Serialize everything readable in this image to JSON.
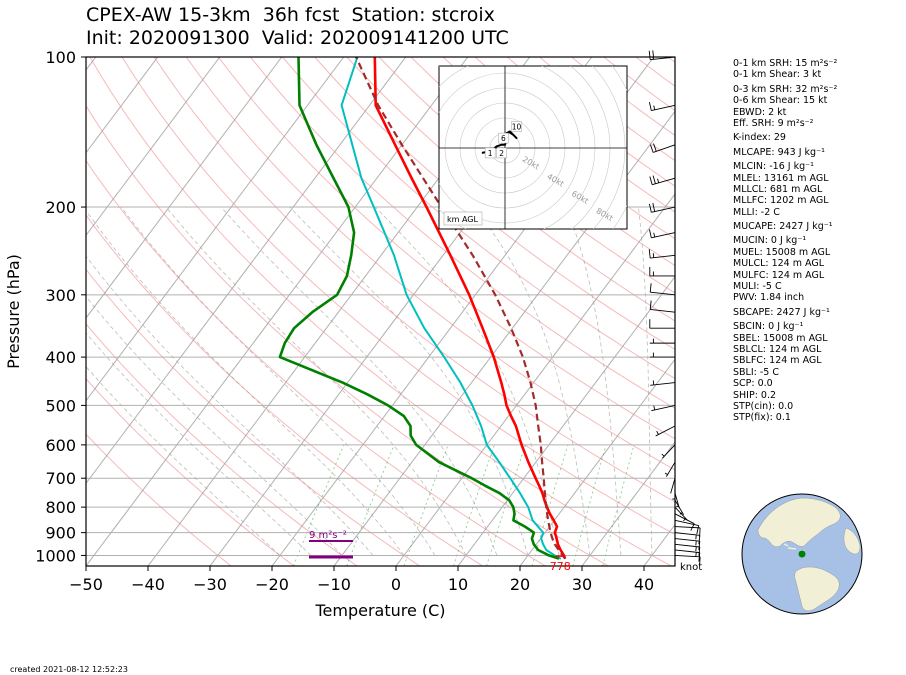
{
  "title_line1": "CPEX-AW 15-3km  36h fcst  Station: stcroix",
  "title_line2": "Init: 2020091300  Valid: 202009141200 UTC",
  "created": "created 2021-08-12 12:52:23",
  "indices": [
    {
      "text": "0-1 km SRH: 15 m²s⁻²"
    },
    {
      "text": "0-1 km Shear: 3 kt"
    },
    {
      "text": "0-3 km SRH: 32 m²s⁻²"
    },
    {
      "text": "0-6 km Shear: 15 kt"
    },
    {
      "text": "EBWD: 2 kt"
    },
    {
      "text": "Eff. SRH: 9 m²s⁻²"
    },
    {
      "text": "K-index: 29"
    },
    {
      "text": "MLCAPE: 943 J kg⁻¹"
    },
    {
      "text": "MLCIN: -16 J kg⁻¹"
    },
    {
      "text": "MLEL: 13161 m AGL"
    },
    {
      "text": "MLLCL: 681 m AGL"
    },
    {
      "text": "MLLFC: 1202 m AGL"
    },
    {
      "text": "MLLI: -2 C"
    },
    {
      "text": "MUCAPE: 2427 J kg⁻¹"
    },
    {
      "text": "MUCIN: 0 J kg⁻¹"
    },
    {
      "text": "MUEL: 15008 m AGL"
    },
    {
      "text": "MULCL: 124 m AGL"
    },
    {
      "text": "MULFC: 124 m AGL"
    },
    {
      "text": "MULI: -5 C"
    },
    {
      "text": "PWV: 1.84 inch"
    },
    {
      "text": "SBCAPE: 2427 J kg⁻¹"
    },
    {
      "text": "SBCIN: 0 J kg⁻¹"
    },
    {
      "text": "SBEL: 15008 m AGL"
    },
    {
      "text": "SBLCL: 124 m AGL"
    },
    {
      "text": "SBLFC: 124 m AGL"
    },
    {
      "text": "SBLI: -5 C"
    },
    {
      "text": "SCP: 0.0"
    },
    {
      "text": "SHIP: 0.2"
    },
    {
      "text": "STP(cin): 0.0"
    },
    {
      "text": "STP(fix): 0.1"
    }
  ],
  "chart_data": {
    "type": "line",
    "subtype": "skew-T log-P",
    "xlabel": "Temperature (C)",
    "ylabel": "Pressure (hPa)",
    "xlim": [
      -50,
      45
    ],
    "ylim": [
      1050,
      100
    ],
    "log_y": true,
    "x_ticks": [
      -50,
      -40,
      -30,
      -20,
      -10,
      0,
      10,
      20,
      30,
      40
    ],
    "y_ticks": [
      100,
      200,
      300,
      400,
      500,
      600,
      700,
      800,
      900,
      1000
    ],
    "colors": {
      "temperature": "#ff0000",
      "dewpoint": "#008000",
      "wetbulb": "#00bfbf",
      "parcel": "#a52a2a",
      "srh": "#800080",
      "lcl": "#ff0000"
    },
    "series": [
      {
        "role": "temperature",
        "points": [
          [
            1015,
            26.4
          ],
          [
            1000,
            25.8
          ],
          [
            975,
            24.6
          ],
          [
            950,
            23.5
          ],
          [
            925,
            22.6
          ],
          [
            900,
            21.6
          ],
          [
            875,
            21.2
          ],
          [
            850,
            19.9
          ],
          [
            825,
            18.5
          ],
          [
            800,
            17.2
          ],
          [
            775,
            16.0
          ],
          [
            750,
            14.8
          ],
          [
            725,
            13.4
          ],
          [
            700,
            11.9
          ],
          [
            650,
            8.8
          ],
          [
            600,
            5.6
          ],
          [
            550,
            2.4
          ],
          [
            525,
            0.4
          ],
          [
            500,
            -1.6
          ],
          [
            475,
            -3.3
          ],
          [
            450,
            -5.2
          ],
          [
            400,
            -9.5
          ],
          [
            350,
            -14.8
          ],
          [
            300,
            -21.0
          ],
          [
            250,
            -28.8
          ],
          [
            200,
            -38.5
          ],
          [
            175,
            -44.4
          ],
          [
            150,
            -51.1
          ],
          [
            125,
            -59.0
          ],
          [
            100,
            -65.0
          ]
        ]
      },
      {
        "role": "dewpoint",
        "points": [
          [
            1015,
            25.4
          ],
          [
            1000,
            23.4
          ],
          [
            975,
            21.0
          ],
          [
            950,
            19.6
          ],
          [
            925,
            18.6
          ],
          [
            900,
            18.2
          ],
          [
            875,
            16.0
          ],
          [
            850,
            13.4
          ],
          [
            825,
            12.8
          ],
          [
            800,
            11.8
          ],
          [
            775,
            10.3
          ],
          [
            750,
            7.9
          ],
          [
            725,
            4.7
          ],
          [
            700,
            1.6
          ],
          [
            650,
            -5.6
          ],
          [
            600,
            -11.4
          ],
          [
            575,
            -13.4
          ],
          [
            550,
            -14.6
          ],
          [
            525,
            -16.9
          ],
          [
            500,
            -20.7
          ],
          [
            475,
            -25.4
          ],
          [
            450,
            -30.8
          ],
          [
            400,
            -44.0
          ],
          [
            375,
            -44.9
          ],
          [
            350,
            -45.2
          ],
          [
            325,
            -44.2
          ],
          [
            300,
            -42.3
          ],
          [
            275,
            -43.0
          ],
          [
            250,
            -44.8
          ],
          [
            225,
            -47.1
          ],
          [
            200,
            -51.1
          ],
          [
            175,
            -57.0
          ],
          [
            150,
            -63.8
          ],
          [
            125,
            -71.3
          ],
          [
            100,
            -77.3
          ]
        ]
      },
      {
        "role": "wetbulb",
        "points": [
          [
            1015,
            25.7
          ],
          [
            1000,
            24.3
          ],
          [
            975,
            22.3
          ],
          [
            950,
            21.1
          ],
          [
            925,
            20.1
          ],
          [
            900,
            19.7
          ],
          [
            850,
            16.5
          ],
          [
            800,
            14.2
          ],
          [
            750,
            11.2
          ],
          [
            700,
            7.8
          ],
          [
            650,
            4.1
          ],
          [
            600,
            0.0
          ],
          [
            550,
            -3.2
          ],
          [
            500,
            -7.1
          ],
          [
            450,
            -11.8
          ],
          [
            400,
            -17.5
          ],
          [
            350,
            -24.2
          ],
          [
            300,
            -31.1
          ],
          [
            250,
            -37.9
          ],
          [
            200,
            -47.0
          ],
          [
            175,
            -52.5
          ],
          [
            150,
            -58.0
          ],
          [
            125,
            -64.5
          ],
          [
            100,
            -67.8
          ]
        ]
      },
      {
        "role": "parcel",
        "points": [
          [
            1015,
            26.4
          ],
          [
            1000,
            25.6
          ],
          [
            975,
            24.3
          ],
          [
            950,
            23.0
          ],
          [
            925,
            21.9
          ],
          [
            900,
            20.9
          ],
          [
            850,
            19.0
          ],
          [
            800,
            17.1
          ],
          [
            750,
            15.2
          ],
          [
            700,
            13.2
          ],
          [
            650,
            11.0
          ],
          [
            600,
            8.7
          ],
          [
            550,
            6.0
          ],
          [
            500,
            3.1
          ],
          [
            450,
            -0.5
          ],
          [
            400,
            -4.8
          ],
          [
            350,
            -10.2
          ],
          [
            300,
            -16.8
          ],
          [
            250,
            -25.2
          ],
          [
            200,
            -36.1
          ],
          [
            150,
            -50.0
          ],
          [
            125,
            -58.6
          ],
          [
            100,
            -68.0
          ]
        ]
      }
    ],
    "lcl": {
      "pressure": 1003,
      "temperature": 25.3,
      "label": "778"
    },
    "srh_marker": {
      "label": "9 m²s⁻²"
    },
    "wind_unit_label": "knot",
    "hodograph": {
      "legend": "km AGL",
      "ring_labels": [
        "20kt",
        "40kt",
        "60kt",
        "80kt"
      ],
      "height_labels": [
        "10",
        "6",
        "1",
        "2"
      ],
      "trace_kt": [
        [
          -14,
          -3
        ],
        [
          -9,
          -2
        ],
        [
          -5,
          1
        ],
        [
          -2,
          2
        ],
        [
          0,
          2
        ],
        [
          1,
          5
        ],
        [
          1,
          9
        ],
        [
          3,
          10
        ],
        [
          7,
          6
        ],
        [
          5,
          8
        ],
        [
          2,
          10
        ]
      ]
    },
    "wind_barbs": [
      {
        "p": 1000,
        "speed_kt": 12,
        "dir": 95
      },
      {
        "p": 975,
        "speed_kt": 15,
        "dir": 100
      },
      {
        "p": 950,
        "speed_kt": 17,
        "dir": 100
      },
      {
        "p": 925,
        "speed_kt": 16,
        "dir": 100
      },
      {
        "p": 900,
        "speed_kt": 15,
        "dir": 100
      },
      {
        "p": 875,
        "speed_kt": 12,
        "dir": 95
      },
      {
        "p": 850,
        "speed_kt": 10,
        "dir": 110
      },
      {
        "p": 825,
        "speed_kt": 10,
        "dir": 130
      },
      {
        "p": 800,
        "speed_kt": 8,
        "dir": 150
      },
      {
        "p": 775,
        "speed_kt": 6,
        "dir": 160
      },
      {
        "p": 750,
        "speed_kt": 5,
        "dir": 170
      },
      {
        "p": 725,
        "speed_kt": 5,
        "dir": 180
      },
      {
        "p": 700,
        "speed_kt": 4,
        "dir": 190
      },
      {
        "p": 650,
        "speed_kt": 5,
        "dir": 200
      },
      {
        "p": 600,
        "speed_kt": 5,
        "dir": 210
      },
      {
        "p": 550,
        "speed_kt": 6,
        "dir": 230
      },
      {
        "p": 500,
        "speed_kt": 7,
        "dir": 250
      },
      {
        "p": 450,
        "speed_kt": 8,
        "dir": 260
      },
      {
        "p": 400,
        "speed_kt": 8,
        "dir": 270
      },
      {
        "p": 375,
        "speed_kt": 9,
        "dir": 270
      },
      {
        "p": 350,
        "speed_kt": 10,
        "dir": 270
      },
      {
        "p": 325,
        "speed_kt": 12,
        "dir": 280
      },
      {
        "p": 300,
        "speed_kt": 14,
        "dir": 280
      },
      {
        "p": 275,
        "speed_kt": 15,
        "dir": 270
      },
      {
        "p": 250,
        "speed_kt": 16,
        "dir": 260
      },
      {
        "p": 225,
        "speed_kt": 15,
        "dir": 250
      },
      {
        "p": 200,
        "speed_kt": 20,
        "dir": 250
      },
      {
        "p": 175,
        "speed_kt": 25,
        "dir": 245
      },
      {
        "p": 150,
        "speed_kt": 22,
        "dir": 240
      },
      {
        "p": 125,
        "speed_kt": 18,
        "dir": 250
      },
      {
        "p": 100,
        "speed_kt": 20,
        "dir": 260
      }
    ],
    "station_marker": {
      "lat": 17.7,
      "lon": -64.7
    }
  }
}
